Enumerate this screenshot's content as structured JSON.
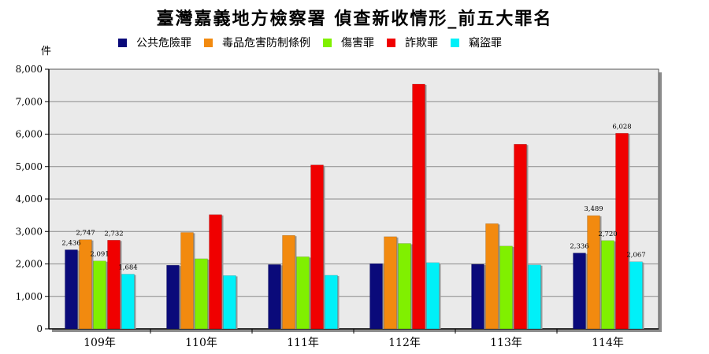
{
  "chart_data": {
    "type": "bar",
    "title": "臺灣嘉義地方檢察署 偵查新收情形_前五大罪名",
    "ylabel": "件",
    "xlabel": "",
    "ylim": [
      0,
      8000
    ],
    "yticks": [
      0,
      1000,
      2000,
      3000,
      4000,
      5000,
      6000,
      7000,
      8000
    ],
    "ytick_labels": [
      "0",
      "1,000",
      "2,000",
      "3,000",
      "4,000",
      "5,000",
      "6,000",
      "7,000",
      "8,000"
    ],
    "grid": true,
    "legend_position": "top",
    "categories": [
      "109年",
      "110年",
      "111年",
      "112年",
      "113年",
      "114年"
    ],
    "series": [
      {
        "name": "公共危險罪",
        "color": "#0a0a7a",
        "values": [
          2436,
          1960,
          1980,
          2010,
          1990,
          2336
        ]
      },
      {
        "name": "毒品危害防制條例",
        "color": "#f28a0f",
        "values": [
          2747,
          2970,
          2880,
          2840,
          3240,
          3489
        ]
      },
      {
        "name": "傷害罪",
        "color": "#80f000",
        "values": [
          2091,
          2160,
          2220,
          2630,
          2550,
          2720
        ]
      },
      {
        "name": "詐欺罪",
        "color": "#f00000",
        "values": [
          2732,
          3520,
          5050,
          7540,
          5690,
          6028
        ]
      },
      {
        "name": "竊盜罪",
        "color": "#00f0f8",
        "values": [
          1684,
          1640,
          1650,
          2040,
          1970,
          2067
        ]
      }
    ],
    "data_labels": {
      "109年": [
        "2,436",
        "2,747",
        "2,091",
        "2,732",
        "1,684"
      ],
      "114年": [
        "2,336",
        "3,489",
        "2,720",
        "6,028",
        "2,067"
      ]
    }
  }
}
